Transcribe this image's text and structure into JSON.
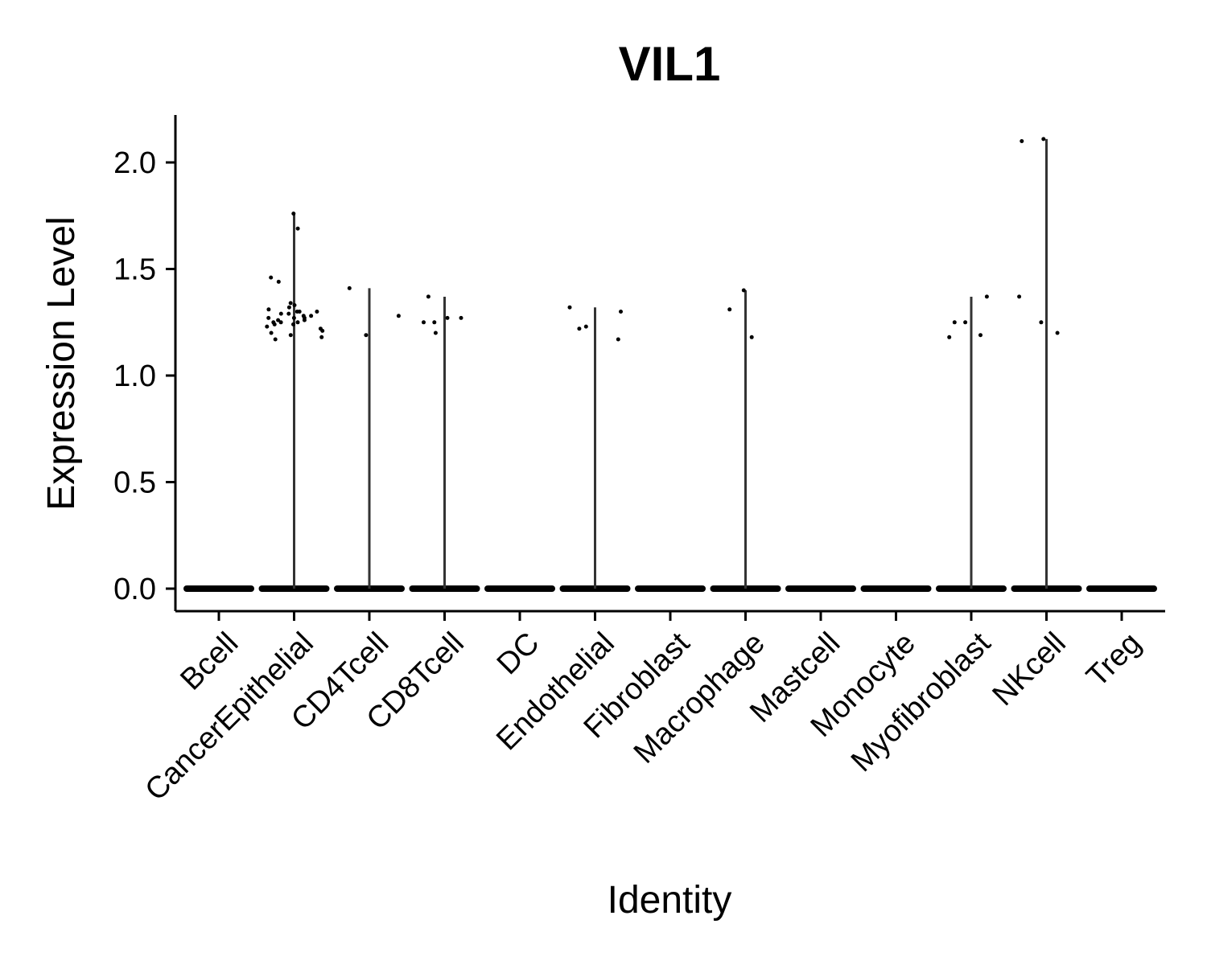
{
  "chart_data": {
    "type": "violin",
    "title": "VIL1",
    "xlabel": "Identity",
    "ylabel": "Expression Level",
    "ylim": [
      -0.1,
      2.22
    ],
    "yticks": [
      0.0,
      0.5,
      1.0,
      1.5,
      2.0
    ],
    "ytick_labels": [
      "0.0",
      "0.5",
      "1.0",
      "1.5",
      "2.0"
    ],
    "grid": false,
    "legend": "none",
    "categories": [
      "Bcell",
      "CancerEpithelial",
      "CD4Tcell",
      "CD8Tcell",
      "DC",
      "Endothelial",
      "Fibroblast",
      "Macrophage",
      "Mastcell",
      "Monocyte",
      "Myofibroblast",
      "NKcell",
      "Treg"
    ],
    "max_values": [
      0.0,
      1.76,
      1.41,
      1.37,
      0.0,
      1.32,
      0.0,
      1.4,
      0.0,
      0.0,
      1.37,
      2.11,
      0.0
    ],
    "points": [
      [],
      [
        1.76,
        1.69,
        1.46,
        1.44,
        1.34,
        1.33,
        1.31,
        1.3,
        1.3,
        1.29,
        1.29,
        1.28,
        1.28,
        1.27,
        1.27,
        1.26,
        1.26,
        1.25,
        1.25,
        1.24,
        1.24,
        1.23,
        1.22,
        1.21,
        1.2,
        1.19,
        1.18,
        1.17,
        1.32,
        1.3,
        1.27,
        1.25
      ],
      [
        1.41,
        1.28,
        1.19
      ],
      [
        1.37,
        1.27,
        1.25,
        1.25,
        1.27,
        1.2
      ],
      [],
      [
        1.23,
        1.32,
        1.3,
        1.22,
        1.17
      ],
      [],
      [
        1.4,
        1.31,
        1.18
      ],
      [],
      [],
      [
        1.25,
        1.37,
        1.19,
        1.18,
        1.25
      ],
      [
        2.11,
        2.1,
        1.37,
        1.25,
        1.2
      ],
      []
    ],
    "colors": {
      "violin_line": "#333333",
      "point": "#000000",
      "axis": "#000000"
    }
  }
}
